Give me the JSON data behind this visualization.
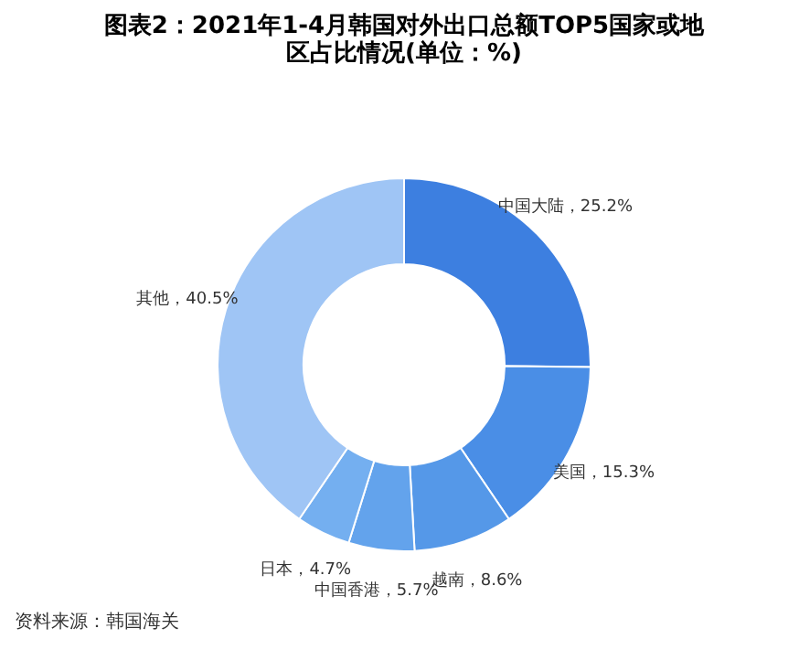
{
  "chart_data": {
    "type": "donut",
    "title": [
      "图表2：2021年1-4月韩国对外出口总额TOP5国家或地",
      "区占比情况(单位：%)"
    ],
    "categories": [
      "中国大陆",
      "美国",
      "越南",
      "中国香港",
      "日本",
      "其他"
    ],
    "values": [
      25.2,
      15.3,
      8.6,
      5.7,
      4.7,
      40.5
    ],
    "colors": [
      "#3d7fe0",
      "#4a8ee6",
      "#5598e8",
      "#63a3ec",
      "#74aff0",
      "#9fc5f5"
    ],
    "value_labels": [
      "25.2%",
      "15.3%",
      "8.6%",
      "5.7%",
      "4.7%",
      "40.5%"
    ],
    "legend": false,
    "annotations": [
      "资料来源：韩国海关"
    ]
  }
}
